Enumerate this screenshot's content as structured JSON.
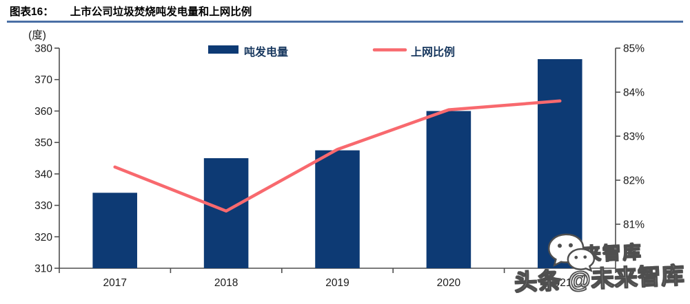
{
  "header": {
    "label": "图表16：",
    "title": "上市公司垃圾焚烧吨发电量和上网比例"
  },
  "chart_data": {
    "type": "bar+line",
    "title": "上市公司垃圾焚烧吨发电量和上网比例",
    "unit_label": "(度)",
    "categories": [
      "2017",
      "2018",
      "2019",
      "2020",
      "2021"
    ],
    "series": [
      {
        "name": "吨发电量",
        "type": "bar",
        "axis": "left",
        "color": "#0d3a74",
        "values": [
          334,
          345,
          347.5,
          360,
          376.5
        ]
      },
      {
        "name": "上网比例",
        "type": "line",
        "axis": "right",
        "color": "#f8696e",
        "values": [
          82.3,
          81.3,
          82.7,
          83.6,
          83.8
        ]
      }
    ],
    "left_axis": {
      "min": 310,
      "max": 380,
      "step": 10,
      "tick_labels": [
        "380",
        "370",
        "360",
        "350",
        "340",
        "330",
        "320",
        "310"
      ]
    },
    "right_axis": {
      "min": 80,
      "max": 85,
      "step": 1,
      "tick_labels": [
        "85%",
        "84%",
        "83%",
        "82%",
        "81%"
      ]
    },
    "legend_position": "top",
    "grid": false
  },
  "watermark": {
    "brand_outline": "未来智库",
    "prefix": "头条",
    "handle": "@未来智库",
    "icon": "wechat-icon"
  },
  "colors": {
    "axis": "#4d4d4d",
    "tick_text": "#1a1a1a",
    "legend_text": "#17375e",
    "rule": "#4a6fa5"
  }
}
